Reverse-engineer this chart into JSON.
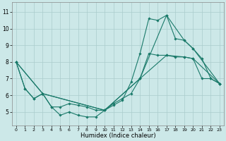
{
  "xlabel": "Humidex (Indice chaleur)",
  "xlim": [
    -0.5,
    23.5
  ],
  "ylim": [
    4.2,
    11.6
  ],
  "yticks": [
    5,
    6,
    7,
    8,
    9,
    10,
    11
  ],
  "xticks": [
    0,
    1,
    2,
    3,
    4,
    5,
    6,
    7,
    8,
    9,
    10,
    11,
    12,
    13,
    14,
    15,
    16,
    17,
    18,
    19,
    20,
    21,
    22,
    23
  ],
  "bg_color": "#cce8e8",
  "grid_color": "#aacccc",
  "line_color": "#1a7a6a",
  "line1_x": [
    0,
    1,
    2,
    3,
    4,
    5,
    6,
    7,
    8,
    9,
    10,
    11,
    12,
    13,
    14,
    15,
    16,
    17,
    18,
    19,
    20,
    21,
    22,
    23
  ],
  "line1_y": [
    8.0,
    6.4,
    5.8,
    6.1,
    5.3,
    4.8,
    5.0,
    4.8,
    4.7,
    4.7,
    5.1,
    5.4,
    5.7,
    6.8,
    8.5,
    10.6,
    10.5,
    10.8,
    9.4,
    9.3,
    8.8,
    8.2,
    7.0,
    6.7
  ],
  "line2_x": [
    0,
    1,
    2,
    3,
    4,
    5,
    6,
    7,
    8,
    9,
    10,
    11,
    12,
    13,
    14,
    15,
    16,
    17,
    18,
    19,
    20,
    21,
    22,
    23
  ],
  "line2_y": [
    8.0,
    6.4,
    5.8,
    6.1,
    5.3,
    5.3,
    5.5,
    5.4,
    5.3,
    5.1,
    5.1,
    5.5,
    5.8,
    6.1,
    7.0,
    8.5,
    8.4,
    8.4,
    8.3,
    8.3,
    8.2,
    7.0,
    7.0,
    6.7
  ],
  "line3_x": [
    0,
    3,
    10,
    14,
    17,
    19,
    20,
    23
  ],
  "line3_y": [
    8.0,
    6.1,
    5.1,
    7.0,
    10.8,
    9.3,
    8.8,
    6.7
  ],
  "line4_x": [
    0,
    3,
    10,
    14,
    17,
    19,
    20,
    23
  ],
  "line4_y": [
    8.0,
    6.1,
    5.1,
    7.0,
    8.4,
    8.3,
    8.2,
    6.7
  ]
}
